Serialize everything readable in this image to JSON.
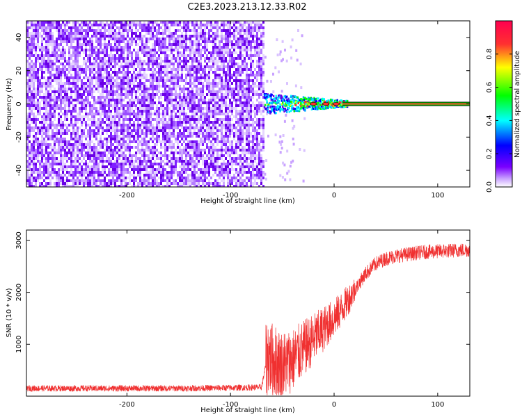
{
  "title": "C2E3.2023.213.12.33.R02",
  "chart_data": [
    {
      "type": "heatmap",
      "xlabel": "Height of straight line (km)",
      "ylabel": "Frequency (Hz)",
      "xlim": [
        -297,
        131
      ],
      "ylim": [
        -50,
        50
      ],
      "xticks": [
        -200,
        -100,
        0,
        100
      ],
      "yticks": [
        -40,
        -20,
        0,
        20,
        40
      ],
      "colorbar": {
        "label": "Normalized spectral amplitude",
        "range": [
          0.0,
          1.0
        ],
        "ticks": [
          "0.0",
          "0.2",
          "0.4",
          "0.6",
          "0.8"
        ],
        "colors": [
          "#ffffff",
          "#b36bff",
          "#6a00e6",
          "#0000ff",
          "#00ffff",
          "#00ff00",
          "#ffff00",
          "#ff0000"
        ]
      },
      "noise_region": {
        "x": [
          -297,
          -68
        ],
        "y": [
          -50,
          50
        ],
        "level": 0.15
      },
      "signal": {
        "x_start": -68,
        "x_end": 131,
        "center_hz": 0,
        "peak_level": 1.0
      }
    },
    {
      "type": "line",
      "xlabel": "Height of straight line (km)",
      "ylabel": "SNR (10 * v/v)",
      "xlim": [
        -297,
        131
      ],
      "ylim": [
        0,
        3200
      ],
      "xticks": [
        -200,
        -100,
        0,
        100
      ],
      "yticks": [
        1000,
        2000,
        3000
      ],
      "color": "#f03030",
      "series": [
        {
          "x": [
            -297,
            -250,
            -200,
            -150,
            -100,
            -70,
            -64,
            -60,
            -50,
            -40,
            -30,
            -20,
            -10,
            0,
            10,
            20,
            30,
            40,
            50,
            60,
            70,
            80,
            90,
            100,
            110,
            120,
            131
          ],
          "y": [
            150,
            150,
            150,
            150,
            160,
            170,
            800,
            700,
            600,
            700,
            900,
            1100,
            1300,
            1500,
            1750,
            2050,
            2350,
            2550,
            2650,
            2700,
            2730,
            2760,
            2780,
            2790,
            2800,
            2810,
            2820
          ]
        }
      ]
    }
  ]
}
